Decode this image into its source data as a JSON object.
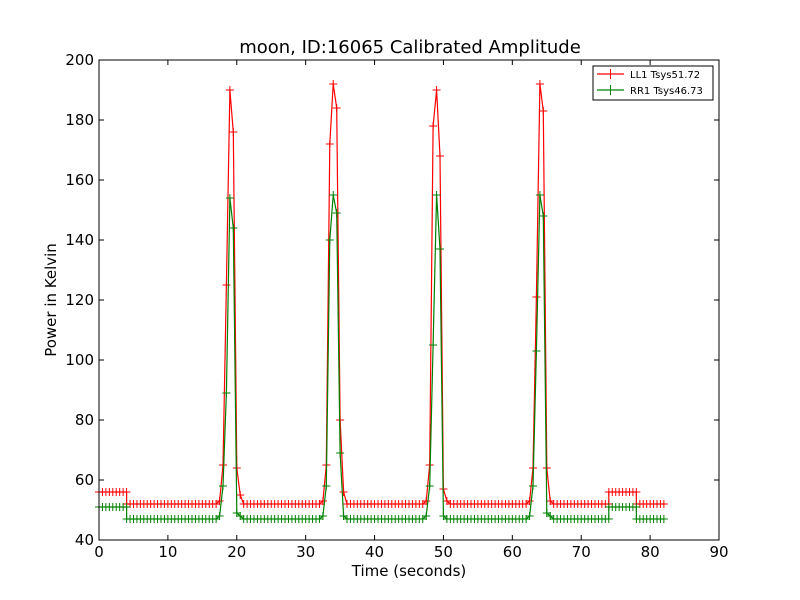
{
  "chart_data": {
    "type": "line",
    "title": "moon, ID:16065 Calibrated Amplitude",
    "xlabel": "Time (seconds)",
    "ylabel": "Power in Kelvin",
    "xlim": [
      0,
      90
    ],
    "ylim": [
      40,
      200
    ],
    "xticks": [
      0,
      10,
      20,
      30,
      40,
      50,
      60,
      70,
      80,
      90
    ],
    "yticks": [
      40,
      60,
      80,
      100,
      120,
      140,
      160,
      180,
      200
    ],
    "grid": false,
    "legend_position": "top-right",
    "marker": "+",
    "series": [
      {
        "name": "LL1 Tsys51.72",
        "color": "#ff0000",
        "x": [
          0,
          4,
          4.01,
          9,
          17,
          17.5,
          18,
          18.5,
          19,
          19.5,
          20,
          20.5,
          21,
          32,
          32.5,
          33,
          33.5,
          34,
          34.5,
          35,
          35.5,
          36,
          47,
          47.5,
          48,
          48.5,
          49,
          49.5,
          50,
          50.5,
          51,
          62,
          62.5,
          63,
          63.5,
          64,
          64.5,
          65,
          65.5,
          66,
          74,
          74.01,
          78,
          78.01,
          82
        ],
        "y": [
          56,
          56,
          52,
          52,
          52,
          53,
          65,
          125,
          190,
          176,
          64,
          55,
          52,
          52,
          53,
          65,
          172,
          192,
          184,
          80,
          56,
          52,
          52,
          53,
          65,
          178,
          190,
          168,
          57,
          53,
          52,
          52,
          53,
          64,
          121,
          192,
          183,
          64,
          53,
          52,
          52,
          56,
          56,
          52,
          52
        ]
      },
      {
        "name": "RR1 Tsys46.73",
        "color": "#008000",
        "x": [
          0,
          4,
          4.01,
          9,
          17,
          17.5,
          18,
          18.5,
          19,
          19.5,
          20,
          20.5,
          21,
          32,
          32.5,
          33,
          33.5,
          34,
          34.5,
          35,
          35.5,
          36,
          47,
          47.5,
          48,
          48.5,
          49,
          49.5,
          50,
          50.5,
          51,
          62,
          62.5,
          63,
          63.5,
          64,
          64.5,
          65,
          65.5,
          66,
          74,
          74.01,
          78,
          78.01,
          82
        ],
        "y": [
          51,
          51,
          47,
          47,
          47,
          48,
          58,
          89,
          154,
          144,
          49,
          48,
          47,
          47,
          48,
          58,
          140,
          155,
          149,
          69,
          48,
          47,
          47,
          48,
          58,
          105,
          155,
          137,
          48,
          47,
          47,
          47,
          48,
          58,
          103,
          155,
          148,
          49,
          48,
          47,
          47,
          51,
          51,
          47,
          47
        ]
      }
    ]
  }
}
